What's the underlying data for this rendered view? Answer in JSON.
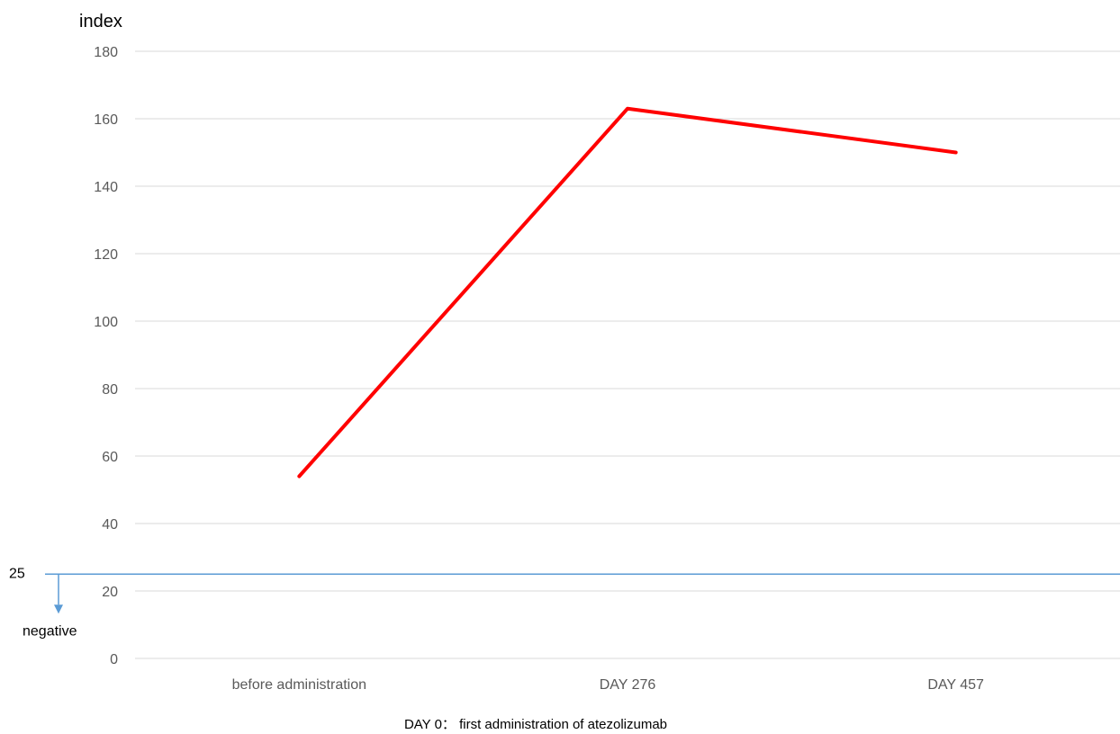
{
  "chart_data": {
    "type": "line",
    "ylabel": "index",
    "ylim": [
      0,
      180
    ],
    "yticks": [
      "0",
      "20",
      "40",
      "60",
      "80",
      "100",
      "120",
      "140",
      "160",
      "180"
    ],
    "categories": [
      "before administration",
      "DAY 276",
      "DAY 457"
    ],
    "series": [
      {
        "values": [
          54,
          163,
          150
        ],
        "color": "#ff0000"
      }
    ],
    "grid": true,
    "threshold": {
      "value": 25,
      "label": "25",
      "arrow_label": "negative",
      "color": "#5b9bd5"
    },
    "footnote": "DAY 0： first administration of atezolizumab"
  }
}
